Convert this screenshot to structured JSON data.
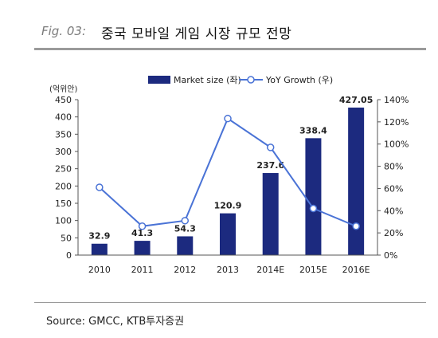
{
  "header": {
    "fig_label": "Fig. 03:",
    "title": "중국 모바일 게임 시장 규모 전망"
  },
  "source": "Source: GMCC, KTB투자증권",
  "chart_data": {
    "type": "bar",
    "categories": [
      "2010",
      "2011",
      "2012",
      "2013",
      "2014E",
      "2015E",
      "2016E"
    ],
    "series": [
      {
        "name": "Market size (좌)",
        "type": "bar",
        "axis": "left",
        "values": [
          32.9,
          41.3,
          54.3,
          120.9,
          237.6,
          338.4,
          427.05
        ],
        "data_labels": [
          "32.9",
          "41.3",
          "54.3",
          "120.9",
          "237.6",
          "338.4",
          "427.05"
        ],
        "color": "#1c2a7f"
      },
      {
        "name": "YoY Growth (우)",
        "type": "line",
        "axis": "right",
        "values": [
          61,
          26,
          31,
          123,
          97,
          42,
          26
        ],
        "color": "#4a73d6"
      }
    ],
    "y_left": {
      "unit_label": "(억위안)",
      "range": [
        0,
        450
      ],
      "ticks": [
        "0",
        "50",
        "100",
        "150",
        "200",
        "250",
        "300",
        "350",
        "400",
        "450"
      ]
    },
    "y_right": {
      "range": [
        0,
        140
      ],
      "ticks": [
        "0%",
        "20%",
        "40%",
        "60%",
        "80%",
        "100%",
        "120%",
        "140%"
      ]
    },
    "legend_position": "top"
  }
}
